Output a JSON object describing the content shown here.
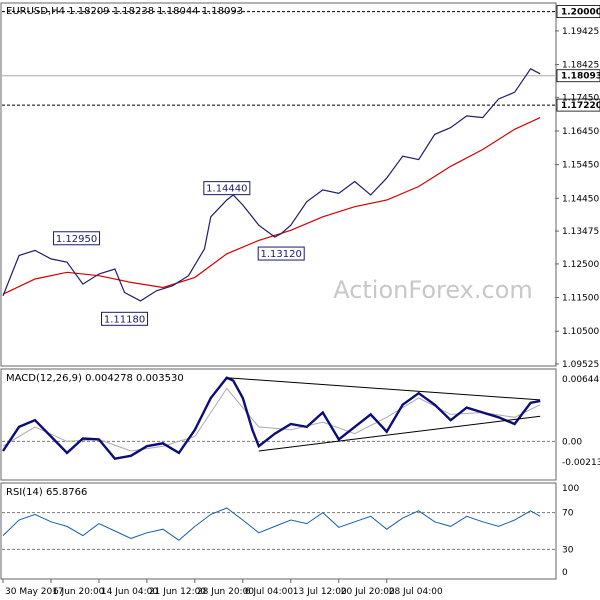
{
  "chart_data": {
    "type": "line",
    "main": {
      "header": "EURUSD,H4  1.18209 1.18238 1.18044 1.18093",
      "y_ticks": [
        "1.19425",
        "1.18425",
        "1.17450",
        "1.16450",
        "1.15450",
        "1.14450",
        "1.13475",
        "1.12500",
        "1.11500",
        "1.10500",
        "1.09525"
      ],
      "ylim": [
        1.09525,
        1.20225
      ],
      "levels": [
        {
          "value": 1.2,
          "label": "1.20000",
          "style": "dashed"
        },
        {
          "value": 1.18093,
          "label": "1.18093",
          "style": "solid"
        },
        {
          "value": 1.1722,
          "label": "1.17220",
          "style": "dashed"
        }
      ],
      "annotations": [
        {
          "label": "1.12950",
          "x": 23,
          "value": 1.1295
        },
        {
          "label": "1.11180",
          "x": 38,
          "value": 1.1118
        },
        {
          "label": "1.14440",
          "x": 70,
          "value": 1.1444
        },
        {
          "label": "1.13120",
          "x": 87,
          "value": 1.1312
        }
      ],
      "price": {
        "x": [
          0,
          5,
          10,
          15,
          20,
          25,
          30,
          35,
          38,
          43,
          48,
          53,
          58,
          63,
          65,
          70,
          72,
          75,
          80,
          85,
          87,
          90,
          95,
          100,
          105,
          110,
          115,
          120,
          125,
          130,
          135,
          140,
          145,
          150,
          155,
          160,
          165,
          168
        ],
        "y": [
          1.1155,
          1.1275,
          1.129,
          1.1265,
          1.1255,
          1.119,
          1.122,
          1.1235,
          1.1165,
          1.114,
          1.117,
          1.1185,
          1.1215,
          1.1295,
          1.139,
          1.144,
          1.1455,
          1.1425,
          1.1365,
          1.133,
          1.134,
          1.1365,
          1.1435,
          1.147,
          1.146,
          1.1495,
          1.1455,
          1.1505,
          1.157,
          1.156,
          1.1635,
          1.1655,
          1.169,
          1.1685,
          1.174,
          1.176,
          1.183,
          1.1815
        ]
      },
      "ma": {
        "x": [
          0,
          10,
          20,
          30,
          40,
          50,
          60,
          70,
          80,
          90,
          100,
          110,
          120,
          130,
          140,
          150,
          160,
          168
        ],
        "y": [
          1.116,
          1.1205,
          1.1225,
          1.1215,
          1.1195,
          1.118,
          1.121,
          1.128,
          1.132,
          1.135,
          1.139,
          1.142,
          1.144,
          1.148,
          1.154,
          1.159,
          1.165,
          1.1685
        ]
      }
    },
    "macd": {
      "header": "MACD(12,26,9) 0.004278 0.003530",
      "y_ticks": [
        "0.006449",
        "0.00",
        "-0.002134"
      ],
      "ylim": [
        -0.0038,
        0.0073
      ],
      "main_line": {
        "x": [
          0,
          5,
          10,
          15,
          20,
          25,
          30,
          35,
          40,
          45,
          50,
          55,
          60,
          65,
          70,
          72,
          75,
          78,
          80,
          85,
          90,
          95,
          100,
          105,
          110,
          115,
          120,
          125,
          130,
          135,
          140,
          145,
          150,
          155,
          160,
          165,
          168
        ],
        "y": [
          -0.001,
          0.0015,
          0.0022,
          0.0005,
          -0.0012,
          0.0003,
          0.0002,
          -0.0018,
          -0.0015,
          -0.0005,
          -0.0002,
          -0.0012,
          0.0012,
          0.0045,
          0.0066,
          0.0063,
          0.0045,
          0.0012,
          -0.0005,
          0.0008,
          0.0018,
          0.0015,
          0.003,
          0.0002,
          0.0015,
          0.0028,
          0.001,
          0.0038,
          0.005,
          0.0038,
          0.0022,
          0.0035,
          0.003,
          0.0025,
          0.0018,
          0.004,
          0.0042
        ]
      },
      "signal_line": {
        "x": [
          0,
          10,
          20,
          30,
          40,
          50,
          60,
          70,
          80,
          90,
          100,
          110,
          120,
          130,
          140,
          150,
          160,
          168
        ],
        "y": [
          -0.0005,
          0.0015,
          0.0,
          0.0002,
          -0.001,
          -0.0005,
          0.0005,
          0.0055,
          0.0015,
          0.0012,
          0.002,
          0.0008,
          0.0025,
          0.0045,
          0.0028,
          0.003,
          0.0025,
          0.0038
        ]
      },
      "trendlines": [
        {
          "x": [
            70,
            168
          ],
          "y": [
            0.0066,
            0.0043
          ]
        },
        {
          "x": [
            80,
            168
          ],
          "y": [
            -0.001,
            0.0026
          ]
        }
      ]
    },
    "rsi": {
      "header": "RSI(14) 65.8766",
      "y_ticks": [
        "100",
        "70",
        "30",
        "0"
      ],
      "ylim": [
        0,
        100
      ],
      "levels": [
        70,
        30
      ],
      "x": [
        0,
        5,
        10,
        15,
        20,
        25,
        30,
        35,
        40,
        45,
        50,
        55,
        60,
        65,
        70,
        75,
        80,
        85,
        90,
        95,
        100,
        105,
        110,
        115,
        120,
        125,
        130,
        135,
        140,
        145,
        150,
        155,
        160,
        165,
        168
      ],
      "y": [
        45,
        62,
        68,
        60,
        55,
        45,
        58,
        50,
        42,
        48,
        52,
        40,
        55,
        68,
        75,
        62,
        48,
        55,
        62,
        58,
        70,
        54,
        60,
        66,
        52,
        64,
        72,
        60,
        55,
        66,
        60,
        55,
        62,
        72,
        66
      ]
    },
    "x_ticks": [
      {
        "label": "30 May 2017",
        "x": 0
      },
      {
        "label": "6 Jun 20:00",
        "x": 15
      },
      {
        "label": "14 Jun 04:00",
        "x": 30
      },
      {
        "label": "21 Jun 12:00",
        "x": 45
      },
      {
        "label": "28 Jun 20:00",
        "x": 60
      },
      {
        "label": "6 Jul 04:00",
        "x": 75
      },
      {
        "label": "13 Jul 12:00",
        "x": 90
      },
      {
        "label": "20 Jul 20:00",
        "x": 105
      },
      {
        "label": "28 Jul 04:00",
        "x": 120
      }
    ],
    "xlim": [
      0,
      172
    ],
    "watermark": "ActionForex.com",
    "colors": {
      "price": "#1f1f6b",
      "ma": "#d90000",
      "macd": "#0c0c7a",
      "signal": "#aaaaaa",
      "trendline": "#000000",
      "rsi": "#1a5ea8",
      "grid": "#999999"
    }
  }
}
